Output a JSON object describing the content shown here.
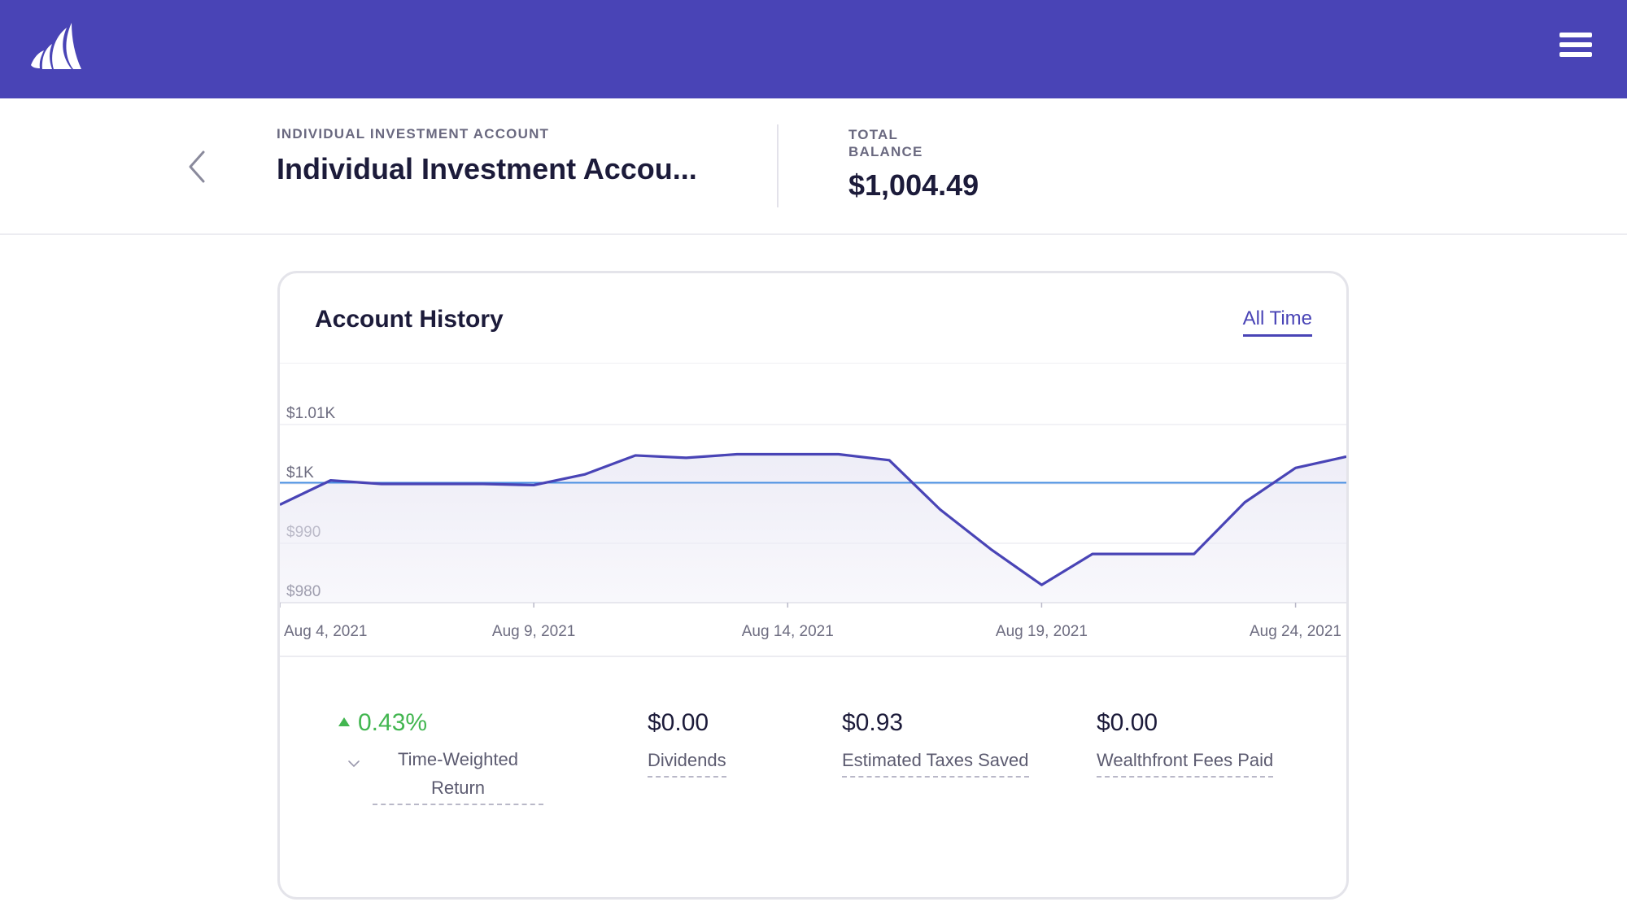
{
  "header": {
    "logo_icon": "wealthfront-logo-icon",
    "menu_icon": "hamburger-menu-icon",
    "brand_color": "#4944b6"
  },
  "account": {
    "back_icon": "chevron-left-icon",
    "eyebrow": "INDIVIDUAL INVESTMENT ACCOUNT",
    "name": "Individual Investment Accou...",
    "balance_label": "TOTAL BALANCE",
    "balance_value": "$1,004.49"
  },
  "history": {
    "title": "Account History",
    "range_label": "All Time"
  },
  "chart_data": {
    "type": "area",
    "title": "",
    "xlabel": "",
    "ylabel": "",
    "ylim": [
      978,
      1013
    ],
    "y_ticks": [
      {
        "value": 980,
        "label": "$980"
      },
      {
        "value": 990,
        "label": "$990"
      },
      {
        "value": 1000,
        "label": "$1K"
      },
      {
        "value": 1010,
        "label": "$1.01K"
      }
    ],
    "x_ticks": [
      {
        "index": 0,
        "label": "Aug 4, 2021"
      },
      {
        "index": 5,
        "label": "Aug 9, 2021"
      },
      {
        "index": 10,
        "label": "Aug 14, 2021"
      },
      {
        "index": 15,
        "label": "Aug 19, 2021"
      },
      {
        "index": 20,
        "label": "Aug 24, 2021"
      }
    ],
    "x": [
      "Aug 4, 2021",
      "Aug 5, 2021",
      "Aug 6, 2021",
      "Aug 7, 2021",
      "Aug 8, 2021",
      "Aug 9, 2021",
      "Aug 10, 2021",
      "Aug 11, 2021",
      "Aug 12, 2021",
      "Aug 13, 2021",
      "Aug 14, 2021",
      "Aug 15, 2021",
      "Aug 16, 2021",
      "Aug 17, 2021",
      "Aug 18, 2021",
      "Aug 19, 2021",
      "Aug 20, 2021",
      "Aug 21, 2021",
      "Aug 22, 2021",
      "Aug 23, 2021",
      "Aug 24, 2021",
      "Aug 25, 2021"
    ],
    "series": [
      {
        "values": [
          996.5,
          1000.6,
          1000.0,
          1000.0,
          1000.0,
          999.8,
          1001.6,
          1004.8,
          1004.4,
          1005.0,
          1005.0,
          1005.0,
          1004.0,
          995.7,
          989.0,
          983.0,
          988.2,
          988.2,
          988.2,
          996.9,
          1002.7,
          1004.6
        ],
        "color": "#4944b6"
      }
    ],
    "reference_line": {
      "value": 1000.2,
      "color": "#4a90e2"
    },
    "grid": true,
    "fill_color": "#ecebf6"
  },
  "stats": {
    "return": {
      "value": "0.43%",
      "label": "Time-Weighted Return",
      "trend_icon": "up-triangle-icon",
      "expand_icon": "chevron-down-icon",
      "color": "#42b650"
    },
    "dividends": {
      "value": "$0.00",
      "label": "Dividends"
    },
    "taxes": {
      "value": "$0.93",
      "label": "Estimated Taxes Saved"
    },
    "fees": {
      "value": "$0.00",
      "label": "Wealthfront Fees Paid"
    }
  }
}
